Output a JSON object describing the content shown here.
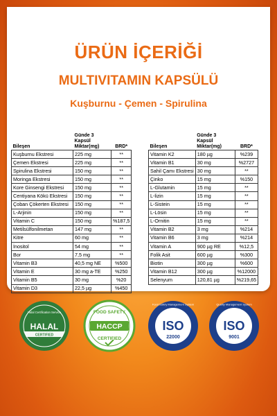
{
  "header": {
    "title": "ÜRÜN İÇERİĞİ",
    "subtitle": "MULTIVITAMIN KAPSÜLÜ",
    "tagline": "Kuşburnu - Çemen - Spirulina"
  },
  "table_headers": {
    "ingredient": "Bileşen",
    "amount": "Günde 3 Kapsül Miktar(mg)",
    "brd": "BRD*"
  },
  "left_rows": [
    {
      "name": "Kuşburnu Ekstresi",
      "amount": "225 mg",
      "brd": "**"
    },
    {
      "name": "Çemen Ekstresi",
      "amount": "225 mg",
      "brd": "**"
    },
    {
      "name": "Spirulina Ekstresi",
      "amount": "150 mg",
      "brd": "**"
    },
    {
      "name": "Moringa Ekstresi",
      "amount": "150 mg",
      "brd": "**"
    },
    {
      "name": "Kore Ginsengi Ekstresi",
      "amount": "150 mg",
      "brd": "**"
    },
    {
      "name": "Centiyana Kökü Ekstresi",
      "amount": "150 mg",
      "brd": "**"
    },
    {
      "name": "Çoban Çökerten Ekstresi",
      "amount": "150 mg",
      "brd": "**"
    },
    {
      "name": "L-Arjinin",
      "amount": "150 mg",
      "brd": "**"
    },
    {
      "name": "Vitamin C",
      "amount": "150 mg",
      "brd": "%187,5"
    },
    {
      "name": "Metilsülfonilmetan",
      "amount": "147 mg",
      "brd": "**"
    },
    {
      "name": "Kitre",
      "amount": "60 mg",
      "brd": "**"
    },
    {
      "name": "İnositol",
      "amount": "54 mg",
      "brd": "**"
    },
    {
      "name": "Bor",
      "amount": "7,5 mg",
      "brd": "**"
    },
    {
      "name": "Vitamin B3",
      "amount": "40,5 mg NE",
      "brd": "%500"
    },
    {
      "name": "Vitamin E",
      "amount": "30 mg a-TE",
      "brd": "%250"
    },
    {
      "name": "Vitamin B5",
      "amount": "30 mg",
      "brd": "%20"
    },
    {
      "name": "Vitamin D3",
      "amount": "22,5 µg",
      "brd": "%450"
    }
  ],
  "right_rows": [
    {
      "name": "Vitamin K2",
      "amount": "180 µg",
      "brd": "%239"
    },
    {
      "name": "Vitamin B1",
      "amount": "30 mg",
      "brd": "%2727"
    },
    {
      "name": "Sahil Çamı Ekstresi",
      "amount": "30 mg",
      "brd": "**"
    },
    {
      "name": "Çinko",
      "amount": "15 mg",
      "brd": "%150"
    },
    {
      "name": "L-Glutamin",
      "amount": "15 mg",
      "brd": "**"
    },
    {
      "name": "L-lizin",
      "amount": "15 mg",
      "brd": "**"
    },
    {
      "name": "L-Sistein",
      "amount": "15 mg",
      "brd": "**"
    },
    {
      "name": "L-Lösin",
      "amount": "15 mg",
      "brd": "**"
    },
    {
      "name": "L-Ornitin",
      "amount": "15 mg",
      "brd": "**"
    },
    {
      "name": "Vitamin B2",
      "amount": "3 mg",
      "brd": "%214"
    },
    {
      "name": "Vitamin B6",
      "amount": "3 mg",
      "brd": "%214"
    },
    {
      "name": "Vitamin A",
      "amount": "900 µg RE",
      "brd": "%12,5"
    },
    {
      "name": "Folik Asit",
      "amount": "600 µg",
      "brd": "%300"
    },
    {
      "name": "Biotin",
      "amount": "300 µg",
      "brd": "%600"
    },
    {
      "name": "Vitamin B12",
      "amount": "300 µg",
      "brd": "%12000"
    },
    {
      "name": "Selenyum",
      "amount": "120,81 µg",
      "brd": "%219,65"
    }
  ],
  "badges": {
    "halal": {
      "top": "Halal Certification Service",
      "main": "HALAL",
      "bottom": "CERTIFIED"
    },
    "haccp": {
      "top": "FOOD SAFETY",
      "main": "HACCP",
      "bottom": "CERTIFIED"
    },
    "iso22000": {
      "ring": "Food Safety Management System",
      "main": "ISO",
      "number": "22000"
    },
    "iso9001": {
      "ring": "Quality Management System",
      "main": "ISO",
      "number": "9001"
    }
  },
  "colors": {
    "accent": "#ea6b15",
    "halal_green": "#2f7d3a",
    "haccp_green": "#5aa832",
    "iso_blue": "#1d3f8a"
  }
}
